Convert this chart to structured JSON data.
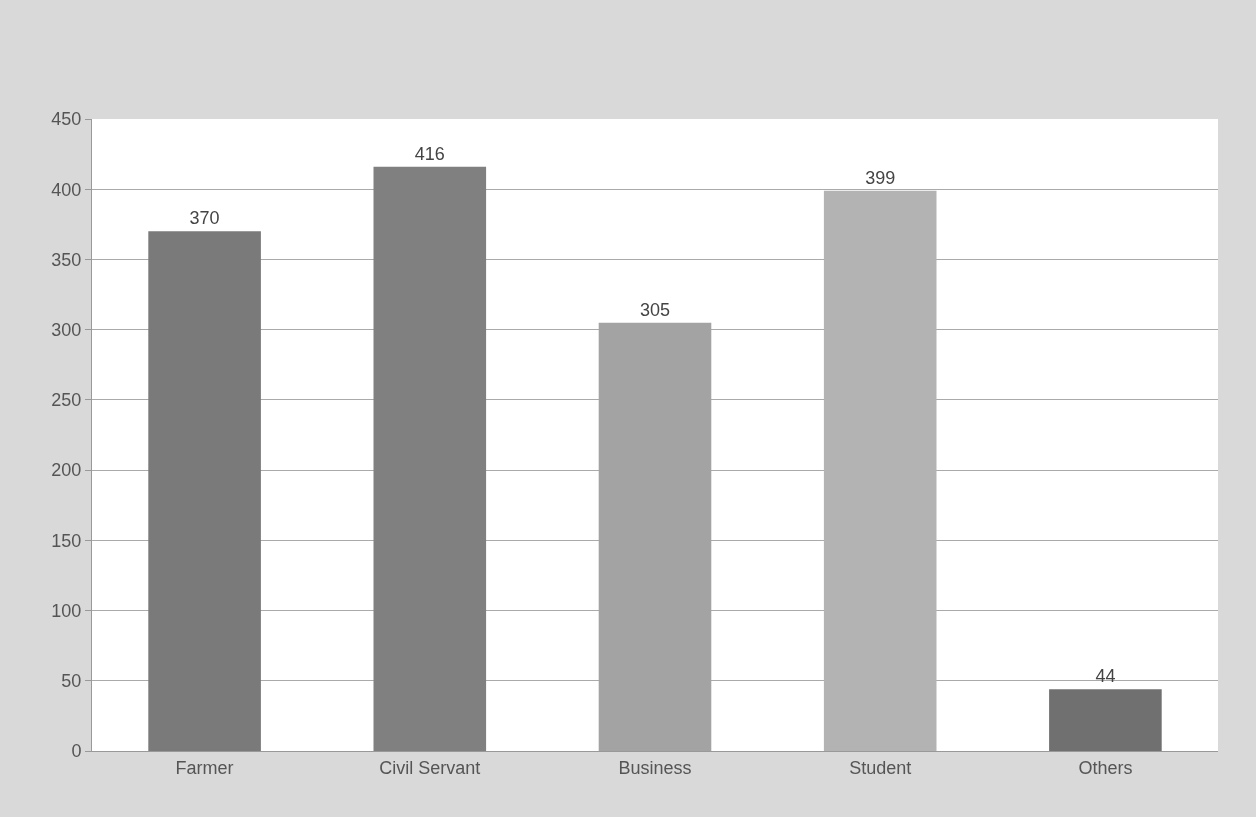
{
  "chart_data": {
    "type": "bar",
    "categories": [
      "Farmer",
      "Civil Servant",
      "Business",
      "Student",
      "Others"
    ],
    "values": [
      370,
      416,
      305,
      399,
      44
    ],
    "colors": [
      "#7a7a7a",
      "#808080",
      "#a3a3a3",
      "#b3b3b3",
      "#707070"
    ],
    "ylim": [
      0,
      450
    ],
    "yticks": [
      0,
      50,
      100,
      150,
      200,
      250,
      300,
      350,
      400,
      450
    ],
    "grid": "y",
    "data_labels": true,
    "legend": false
  }
}
